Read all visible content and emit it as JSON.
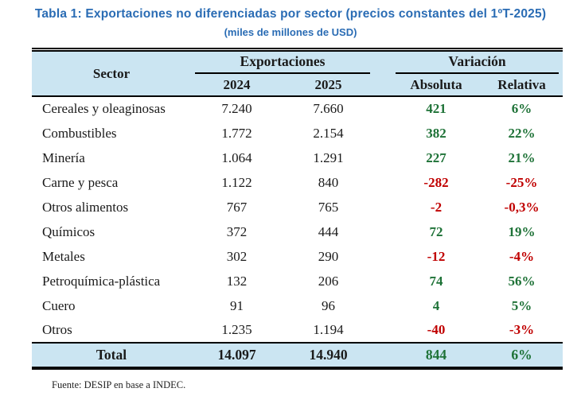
{
  "title": "Tabla 1: Exportaciones no diferenciadas por sector (precios constantes del 1ºT-2025)",
  "subtitle": "(miles de millones de USD)",
  "colors": {
    "title_blue": "#2a6cb4",
    "header_bg": "#cbe5f2",
    "positive_green": "#1e7237",
    "negative_red": "#c00000"
  },
  "table": {
    "headers": {
      "sector": "Sector",
      "exportaciones_group": "Exportaciones",
      "variacion_group": "Variación",
      "col_2024": "2024",
      "col_2025": "2025",
      "absoluta": "Absoluta",
      "relativa": "Relativa"
    },
    "rows": [
      {
        "sector": "Cereales y oleaginosas",
        "y2024": "7.240",
        "y2025": "7.660",
        "abs": "421",
        "rel": "6%"
      },
      {
        "sector": "Combustibles",
        "y2024": "1.772",
        "y2025": "2.154",
        "abs": "382",
        "rel": "22%"
      },
      {
        "sector": "Minería",
        "y2024": "1.064",
        "y2025": "1.291",
        "abs": "227",
        "rel": "21%"
      },
      {
        "sector": "Carne y pesca",
        "y2024": "1.122",
        "y2025": "840",
        "abs": "-282",
        "rel": "-25%"
      },
      {
        "sector": "Otros alimentos",
        "y2024": "767",
        "y2025": "765",
        "abs": "-2",
        "rel": "-0,3%"
      },
      {
        "sector": "Químicos",
        "y2024": "372",
        "y2025": "444",
        "abs": "72",
        "rel": "19%"
      },
      {
        "sector": "Metales",
        "y2024": "302",
        "y2025": "290",
        "abs": "-12",
        "rel": "-4%"
      },
      {
        "sector": "Petroquímica-plástica",
        "y2024": "132",
        "y2025": "206",
        "abs": "74",
        "rel": "56%"
      },
      {
        "sector": "Cuero",
        "y2024": "91",
        "y2025": "96",
        "abs": "4",
        "rel": "5%"
      },
      {
        "sector": "Otros",
        "y2024": "1.235",
        "y2025": "1.194",
        "abs": "-40",
        "rel": "-3%"
      }
    ],
    "total": {
      "label": "Total",
      "y2024": "14.097",
      "y2025": "14.940",
      "abs": "844",
      "rel": "6%"
    }
  },
  "source_note": "Fuente: DESIP en base a INDEC."
}
